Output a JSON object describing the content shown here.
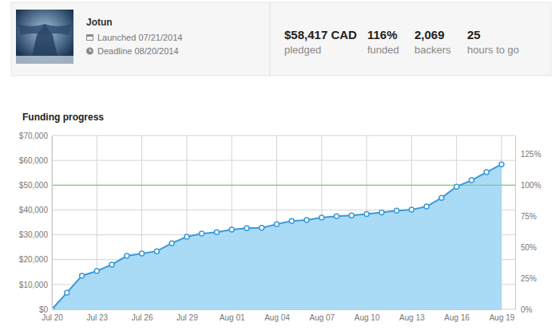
{
  "header": {
    "project": "Jotun",
    "launched": "Launched 07/21/2014",
    "deadline": "Deadline 08/20/2014",
    "stats": [
      {
        "value": "$58,417 CAD",
        "label": "pledged"
      },
      {
        "value": "116%",
        "label": "funded"
      },
      {
        "value": "2,069",
        "label": "backers"
      },
      {
        "value": "25",
        "label": "hours to go"
      }
    ]
  },
  "chart_data": {
    "type": "area",
    "title": "Funding progress",
    "categories": [
      "Jul 20",
      null,
      null,
      "Jul 23",
      null,
      null,
      "Jul 26",
      null,
      null,
      "Jul 29",
      null,
      null,
      "Aug 01",
      null,
      null,
      "Aug 04",
      null,
      null,
      "Aug 07",
      null,
      null,
      "Aug 10",
      null,
      null,
      "Aug 13",
      null,
      null,
      "Aug 16",
      null,
      null,
      "Aug 19"
    ],
    "values": [
      0,
      6700,
      13500,
      15400,
      18000,
      21500,
      22500,
      23400,
      26600,
      29200,
      30500,
      31100,
      32100,
      32700,
      32800,
      34300,
      35600,
      36000,
      36900,
      37500,
      37800,
      38400,
      39000,
      39700,
      40100,
      41400,
      44900,
      49400,
      52000,
      55200,
      58400
    ],
    "color": "#3a9ad9",
    "marker": "circle",
    "grid": true,
    "goal": 50000,
    "ylim": [
      0,
      70000
    ],
    "yticks": [
      {
        "value": 0,
        "label": "$0"
      },
      {
        "value": 10000,
        "label": "$10,000"
      },
      {
        "value": 20000,
        "label": "$20,000"
      },
      {
        "value": 30000,
        "label": "$30,000"
      },
      {
        "value": 40000,
        "label": "$40,000"
      },
      {
        "value": 50000,
        "label": "$50,000"
      },
      {
        "value": 60000,
        "label": "$60,000"
      },
      {
        "value": 70000,
        "label": "$70,000"
      }
    ],
    "y2lim": [
      0,
      140
    ],
    "y2ticks": [
      {
        "value": 0,
        "label": "0%"
      },
      {
        "value": 25,
        "label": "25%"
      },
      {
        "value": 50,
        "label": "50%"
      },
      {
        "value": 75,
        "label": "75%"
      },
      {
        "value": 100,
        "label": "100%"
      },
      {
        "value": 125,
        "label": "125%"
      }
    ]
  }
}
